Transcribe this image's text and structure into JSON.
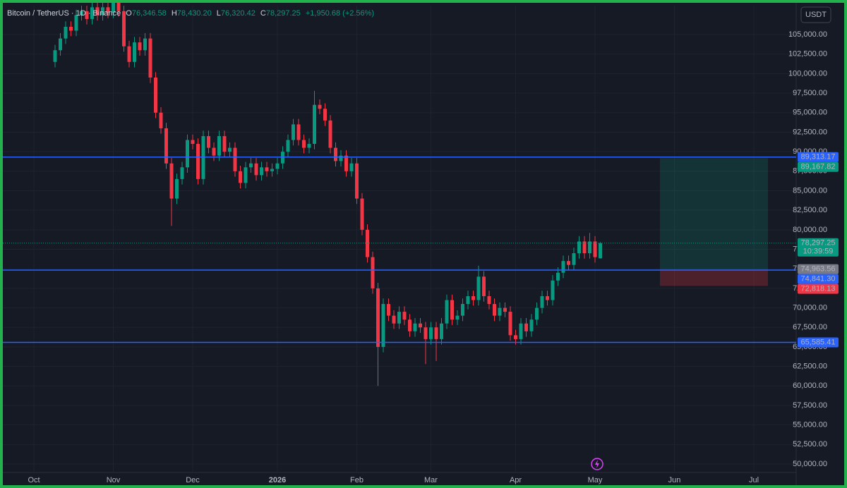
{
  "header": {
    "symbol": "Bitcoin / TetherUS · 1D · Binance",
    "values": [
      {
        "key": "O",
        "value": "76,346.58"
      },
      {
        "key": "H",
        "value": "78,430.20"
      },
      {
        "key": "L",
        "value": "76,320.42"
      },
      {
        "key": "C",
        "value": "78,297.25"
      }
    ],
    "change": "+1,950.68 (+2.56%)"
  },
  "chart_data": {
    "type": "candlestick",
    "currency": "USDT",
    "up_color": "#089981",
    "down_color": "#f23645",
    "grid": true,
    "categories": [
      "Oct",
      null,
      null,
      null,
      null,
      null,
      null,
      null,
      null,
      null,
      null,
      null,
      null,
      null,
      null,
      "Nov",
      null,
      null,
      null,
      null,
      null,
      null,
      null,
      null,
      null,
      null,
      null,
      null,
      null,
      null,
      "Dec",
      null,
      null,
      null,
      null,
      null,
      null,
      null,
      null,
      null,
      null,
      null,
      null,
      null,
      null,
      null,
      "2026",
      null,
      null,
      null,
      null,
      null,
      null,
      null,
      null,
      null,
      null,
      null,
      null,
      null,
      null,
      "Feb",
      null,
      null,
      null,
      null,
      null,
      null,
      null,
      null,
      null,
      null,
      null,
      null,
      null,
      "Mar",
      null,
      null,
      null,
      null,
      null,
      null,
      null,
      null,
      null,
      null,
      null,
      null,
      null,
      null,
      null,
      "Apr",
      null,
      null,
      null,
      null,
      null,
      null,
      null,
      null,
      null,
      null,
      null,
      null,
      null,
      null,
      "May",
      null,
      null,
      null,
      null,
      null,
      null,
      null,
      null,
      null,
      null,
      null,
      null,
      null,
      null,
      "Jun",
      null,
      null,
      null,
      null,
      null,
      null,
      null,
      null,
      null,
      null,
      null,
      null,
      null,
      null,
      "Jul",
      null,
      null,
      null,
      null
    ],
    "ohlc": [
      null,
      null,
      null,
      null,
      [
        101500,
        103700,
        100800,
        103000
      ],
      [
        103000,
        105200,
        102300,
        104500
      ],
      [
        104500,
        106700,
        103800,
        106000
      ],
      [
        106000,
        106700,
        104800,
        105500
      ],
      [
        105500,
        108200,
        104800,
        107500
      ],
      [
        107500,
        108700,
        106800,
        108000
      ],
      [
        108000,
        108700,
        106300,
        107000
      ],
      [
        107000,
        109200,
        106300,
        108500
      ],
      [
        108500,
        109200,
        106800,
        107500
      ],
      [
        107500,
        109200,
        106800,
        108500
      ],
      [
        108500,
        109200,
        107100,
        107800
      ],
      [
        107800,
        110200,
        107100,
        109500
      ],
      [
        109500,
        110200,
        107300,
        108000
      ],
      [
        108000,
        108700,
        102800,
        103500
      ],
      [
        103500,
        104200,
        100800,
        101500
      ],
      [
        101500,
        104700,
        100800,
        104000
      ],
      [
        104000,
        104700,
        102300,
        103000
      ],
      [
        103000,
        105200,
        102300,
        104500
      ],
      [
        104500,
        105200,
        98800,
        99500
      ],
      [
        99500,
        100200,
        94300,
        95000
      ],
      [
        95000,
        95700,
        92300,
        93000
      ],
      [
        93000,
        93700,
        87800,
        88500
      ],
      [
        88500,
        89200,
        80500,
        84000
      ],
      [
        84000,
        87200,
        83300,
        86500
      ],
      [
        86500,
        88700,
        85800,
        88000
      ],
      [
        88000,
        92200,
        87300,
        91500
      ],
      [
        91500,
        92200,
        90300,
        91000
      ],
      [
        91000,
        91700,
        85800,
        86500
      ],
      [
        86500,
        92700,
        85800,
        92000
      ],
      [
        92000,
        92700,
        89800,
        90500
      ],
      [
        90500,
        91200,
        88800,
        89500
      ],
      [
        89500,
        92700,
        88800,
        92000
      ],
      [
        92000,
        92700,
        89300,
        90000
      ],
      [
        90000,
        91200,
        89300,
        90500
      ],
      [
        90500,
        91200,
        86800,
        87500
      ],
      [
        87500,
        88200,
        85300,
        86000
      ],
      [
        86000,
        88700,
        85300,
        88000
      ],
      [
        88000,
        89200,
        87300,
        88500
      ],
      [
        88500,
        89200,
        86300,
        87000
      ],
      [
        87000,
        88700,
        86300,
        88000
      ],
      [
        88000,
        88700,
        86800,
        87500
      ],
      [
        87500,
        88500,
        86800,
        87800
      ],
      [
        87800,
        89200,
        87100,
        88500
      ],
      [
        88500,
        90700,
        87800,
        90000
      ],
      [
        90000,
        92200,
        89300,
        91500
      ],
      [
        91500,
        94200,
        90800,
        93500
      ],
      [
        93500,
        94200,
        90800,
        91500
      ],
      [
        91500,
        92200,
        89800,
        90500
      ],
      [
        90500,
        91700,
        89800,
        91000
      ],
      [
        91000,
        97800,
        90300,
        96000
      ],
      [
        96000,
        96700,
        94800,
        95500
      ],
      [
        95500,
        96200,
        93300,
        94000
      ],
      [
        94000,
        94700,
        89800,
        90500
      ],
      [
        90500,
        91200,
        88100,
        88800
      ],
      [
        88800,
        90200,
        88100,
        89500
      ],
      [
        89500,
        90200,
        86800,
        87500
      ],
      [
        87500,
        89200,
        86800,
        88500
      ],
      [
        88500,
        89200,
        83300,
        84000
      ],
      [
        84000,
        84700,
        79300,
        80000
      ],
      [
        80000,
        80700,
        75800,
        76500
      ],
      [
        76500,
        77200,
        71800,
        72500
      ],
      [
        72500,
        73200,
        60000,
        65000
      ],
      [
        65000,
        71200,
        64300,
        70500
      ],
      [
        70500,
        71200,
        68300,
        69000
      ],
      [
        69000,
        69700,
        67300,
        68000
      ],
      [
        68000,
        70200,
        67300,
        69500
      ],
      [
        69500,
        70200,
        67800,
        68500
      ],
      [
        68500,
        69200,
        66300,
        67000
      ],
      [
        67000,
        68700,
        66300,
        68000
      ],
      [
        68000,
        68700,
        66800,
        67500
      ],
      [
        67500,
        68200,
        62800,
        66000
      ],
      [
        66000,
        68200,
        65300,
        67500
      ],
      [
        67500,
        68200,
        63200,
        66000
      ],
      [
        66000,
        68700,
        65300,
        68000
      ],
      [
        68000,
        71700,
        67300,
        71000
      ],
      [
        71000,
        71700,
        67800,
        68500
      ],
      [
        68500,
        69700,
        67800,
        69000
      ],
      [
        69000,
        71200,
        68300,
        70500
      ],
      [
        70500,
        72200,
        69800,
        71500
      ],
      [
        71500,
        72200,
        70300,
        71000
      ],
      [
        71000,
        75400,
        70300,
        74000
      ],
      [
        74000,
        74700,
        70800,
        71500
      ],
      [
        71500,
        72200,
        69800,
        70500
      ],
      [
        70500,
        71200,
        68300,
        69000
      ],
      [
        69000,
        70700,
        68300,
        70000
      ],
      [
        70000,
        70700,
        68800,
        69500
      ],
      [
        69500,
        70200,
        65800,
        66500
      ],
      [
        66500,
        67200,
        65300,
        66000
      ],
      [
        66000,
        68700,
        65300,
        68000
      ],
      [
        68000,
        68700,
        66300,
        67000
      ],
      [
        67000,
        69200,
        66300,
        68500
      ],
      [
        68500,
        70700,
        67800,
        70000
      ],
      [
        70000,
        72200,
        69300,
        71500
      ],
      [
        71500,
        72200,
        70300,
        71000
      ],
      [
        71000,
        74200,
        70300,
        73500
      ],
      [
        73500,
        75200,
        72800,
        74500
      ],
      [
        74500,
        76700,
        73800,
        76000
      ],
      [
        76000,
        76700,
        74800,
        75500
      ],
      [
        75500,
        77700,
        74800,
        77000
      ],
      [
        77000,
        79200,
        76300,
        78500
      ],
      [
        78500,
        79200,
        76300,
        77000
      ],
      [
        77000,
        79600,
        76300,
        78500
      ],
      [
        78500,
        79200,
        75800,
        76500
      ],
      [
        76346.58,
        78430.2,
        76320.42,
        78297.25
      ],
      null,
      null,
      null,
      null,
      null,
      null,
      null,
      null,
      null,
      null,
      null,
      null,
      null,
      null,
      null,
      null,
      null,
      null,
      null,
      null,
      null,
      null,
      null,
      null,
      null,
      null,
      null,
      null,
      null,
      null,
      null,
      null,
      null
    ],
    "ylim": [
      48916,
      108708
    ],
    "yticks": [
      {
        "value": 50000,
        "label": "50,000.00"
      },
      {
        "value": 52500,
        "label": "52,500.00"
      },
      {
        "value": 55000,
        "label": "55,000.00"
      },
      {
        "value": 57500,
        "label": "57,500.00"
      },
      {
        "value": 60000,
        "label": "60,000.00"
      },
      {
        "value": 62500,
        "label": "62,500.00"
      },
      {
        "value": 65000,
        "label": "65,000.00"
      },
      {
        "value": 67500,
        "label": "67,500.00"
      },
      {
        "value": 70000,
        "label": "70,000.00"
      },
      {
        "value": 72500,
        "label": "72,500.00"
      },
      {
        "value": 75000,
        "label": "75,000.00"
      },
      {
        "value": 77500,
        "label": "77,500.00"
      },
      {
        "value": 80000,
        "label": "80,000.00"
      },
      {
        "value": 82500,
        "label": "82,500.00"
      },
      {
        "value": 85000,
        "label": "85,000.00"
      },
      {
        "value": 87500,
        "label": "87,500.00"
      },
      {
        "value": 90000,
        "label": "90,000.00"
      },
      {
        "value": 92500,
        "label": "92,500.00"
      },
      {
        "value": 95000,
        "label": "95,000.00"
      },
      {
        "value": 97500,
        "label": "97,500.00"
      },
      {
        "value": 100000,
        "label": "100,000.00"
      },
      {
        "value": 102500,
        "label": "102,500.00"
      },
      {
        "value": 105000,
        "label": "105,000.00"
      }
    ],
    "price_lines": [
      {
        "value": 89313.17,
        "label": "89,313.17",
        "color": "#2962ff"
      },
      {
        "value": 74841.3,
        "label": "74,841.30",
        "color": "#2962ff"
      },
      {
        "value": 65585.41,
        "label": "65,585.41",
        "color": "#2962ff"
      }
    ],
    "position": {
      "target": {
        "value": 89167.82,
        "label": "89,167.82",
        "color": "#089981"
      },
      "entry": {
        "value": 74963.56,
        "label": "74,963.56",
        "color": "#787b86"
      },
      "stop": {
        "value": 72818.13,
        "label": "72,818.13",
        "color": "#f23645"
      }
    },
    "last_price": {
      "value": 78297.25,
      "label": "78,297.25",
      "countdown": "10:39:59",
      "color": "#089981"
    }
  }
}
